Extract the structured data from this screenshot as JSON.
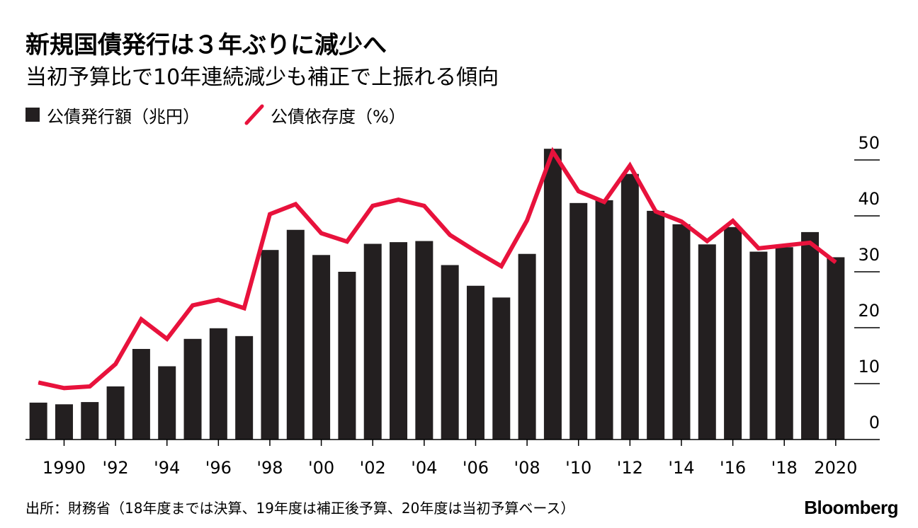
{
  "title": "新規国債発行は３年ぶりに減少へ",
  "subtitle": "当初予算比で10年連続減少も補正で上振れる傾向",
  "source": "出所：財務省（18年度までは決算、19年度は補正後予算、20年度は当初予算ベース）",
  "logo": "Bloomberg",
  "colors": {
    "bar": "#231f20",
    "line": "#e8123c",
    "grid": "#000000"
  },
  "chart_data": {
    "type": "bar+line",
    "categories": [
      "1989",
      "1990",
      "1991",
      "1992",
      "1993",
      "1994",
      "1995",
      "1996",
      "1997",
      "1998",
      "1999",
      "2000",
      "2001",
      "2002",
      "2003",
      "2004",
      "2005",
      "2006",
      "2007",
      "2008",
      "2009",
      "2010",
      "2011",
      "2012",
      "2013",
      "2014",
      "2015",
      "2016",
      "2017",
      "2018",
      "2019",
      "2020"
    ],
    "x_tick_labels": [
      {
        "year": "1990",
        "label": "1990"
      },
      {
        "year": "1992",
        "label": "'92"
      },
      {
        "year": "1994",
        "label": "'94"
      },
      {
        "year": "1996",
        "label": "'96"
      },
      {
        "year": "1998",
        "label": "'98"
      },
      {
        "year": "2000",
        "label": "'00"
      },
      {
        "year": "2002",
        "label": "'02"
      },
      {
        "year": "2004",
        "label": "'04"
      },
      {
        "year": "2006",
        "label": "'06"
      },
      {
        "year": "2008",
        "label": "'08"
      },
      {
        "year": "2010",
        "label": "'10"
      },
      {
        "year": "2012",
        "label": "'12"
      },
      {
        "year": "2014",
        "label": "'14"
      },
      {
        "year": "2016",
        "label": "'16"
      },
      {
        "year": "2018",
        "label": "'18"
      },
      {
        "year": "2020",
        "label": "2020"
      }
    ],
    "y_ticks": [
      "0",
      "10",
      "20",
      "30",
      "40",
      "50"
    ],
    "ylim": [
      0,
      52
    ],
    "series": [
      {
        "name": "公債発行額（兆円）",
        "type": "bar",
        "values": [
          6.6,
          6.3,
          6.7,
          9.5,
          16.2,
          13.1,
          18.0,
          19.9,
          18.5,
          33.9,
          37.5,
          33.0,
          30.0,
          35.0,
          35.3,
          35.5,
          31.2,
          27.5,
          25.4,
          33.2,
          52.0,
          42.3,
          42.8,
          47.5,
          40.9,
          38.5,
          34.9,
          38.0,
          33.6,
          34.4,
          37.1,
          32.6
        ]
      },
      {
        "name": "公債依存度（%）",
        "type": "line",
        "values": [
          10.2,
          9.2,
          9.5,
          13.5,
          21.5,
          18.0,
          24.0,
          25.0,
          23.5,
          40.3,
          42.1,
          36.9,
          35.4,
          41.8,
          42.9,
          41.8,
          36.6,
          33.7,
          31.0,
          39.2,
          51.5,
          44.4,
          42.5,
          49.0,
          40.8,
          39.0,
          35.5,
          39.1,
          34.2,
          34.7,
          35.2,
          31.7
        ]
      }
    ],
    "legend_position": "top-left",
    "y_axis_side": "right",
    "grid": true
  }
}
